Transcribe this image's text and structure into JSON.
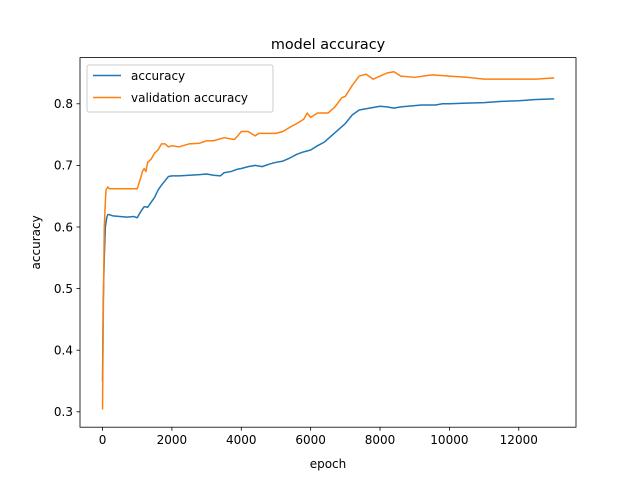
{
  "chart_data": {
    "type": "line",
    "title": "model accuracy",
    "xlabel": "epoch",
    "ylabel": "accuracy",
    "xlim": [
      -650,
      13650
    ],
    "ylim": [
      0.275,
      0.875
    ],
    "xticks": [
      0,
      2000,
      4000,
      6000,
      8000,
      10000,
      12000
    ],
    "yticks": [
      0.3,
      0.4,
      0.5,
      0.6,
      0.7,
      0.8
    ],
    "xtick_labels": [
      "0",
      "2000",
      "4000",
      "6000",
      "8000",
      "10000",
      "12000"
    ],
    "ytick_labels": [
      "0.3",
      "0.4",
      "0.5",
      "0.6",
      "0.7",
      "0.8"
    ],
    "grid": false,
    "legend_position": "upper-left",
    "series": [
      {
        "name": "accuracy",
        "color": "#1f77b4",
        "x": [
          0,
          20,
          50,
          80,
          120,
          150,
          200,
          300,
          500,
          700,
          900,
          1000,
          1100,
          1200,
          1300,
          1400,
          1500,
          1600,
          1700,
          1800,
          1900,
          2000,
          2200,
          2500,
          2800,
          3000,
          3200,
          3400,
          3500,
          3700,
          3900,
          4000,
          4200,
          4400,
          4600,
          4800,
          5000,
          5200,
          5400,
          5600,
          5800,
          6000,
          6200,
          6400,
          6600,
          6800,
          7000,
          7200,
          7400,
          7600,
          7800,
          8000,
          8200,
          8400,
          8600,
          8800,
          9000,
          9200,
          9400,
          9600,
          9800,
          10000,
          10500,
          11000,
          11500,
          12000,
          12500,
          13000
        ],
        "values": [
          0.35,
          0.48,
          0.55,
          0.6,
          0.615,
          0.62,
          0.62,
          0.618,
          0.617,
          0.616,
          0.617,
          0.615,
          0.625,
          0.633,
          0.632,
          0.64,
          0.648,
          0.66,
          0.668,
          0.675,
          0.682,
          0.683,
          0.683,
          0.684,
          0.685,
          0.686,
          0.684,
          0.683,
          0.688,
          0.69,
          0.694,
          0.695,
          0.698,
          0.7,
          0.698,
          0.702,
          0.705,
          0.707,
          0.712,
          0.718,
          0.722,
          0.725,
          0.732,
          0.738,
          0.748,
          0.758,
          0.768,
          0.782,
          0.79,
          0.792,
          0.794,
          0.796,
          0.795,
          0.793,
          0.795,
          0.796,
          0.797,
          0.798,
          0.798,
          0.798,
          0.8,
          0.8,
          0.801,
          0.802,
          0.804,
          0.805,
          0.807,
          0.808
        ]
      },
      {
        "name": "validation accuracy",
        "color": "#ff7f0e",
        "x": [
          0,
          20,
          50,
          80,
          100,
          150,
          200,
          500,
          900,
          1000,
          1100,
          1150,
          1200,
          1250,
          1300,
          1400,
          1500,
          1600,
          1650,
          1700,
          1800,
          1900,
          2000,
          2200,
          2500,
          2800,
          3000,
          3200,
          3500,
          3800,
          3900,
          4000,
          4200,
          4400,
          4500,
          4800,
          5000,
          5200,
          5400,
          5600,
          5800,
          5900,
          6000,
          6200,
          6500,
          6700,
          6900,
          7000,
          7200,
          7400,
          7600,
          7800,
          8000,
          8200,
          8400,
          8600,
          9000,
          9500,
          10000,
          10500,
          11000,
          11500,
          12000,
          12500,
          13000
        ],
        "values": [
          0.305,
          0.45,
          0.6,
          0.64,
          0.66,
          0.665,
          0.662,
          0.662,
          0.662,
          0.662,
          0.68,
          0.69,
          0.695,
          0.69,
          0.705,
          0.71,
          0.72,
          0.725,
          0.73,
          0.735,
          0.735,
          0.73,
          0.732,
          0.73,
          0.735,
          0.736,
          0.74,
          0.74,
          0.745,
          0.742,
          0.748,
          0.755,
          0.755,
          0.748,
          0.752,
          0.752,
          0.752,
          0.755,
          0.762,
          0.768,
          0.775,
          0.785,
          0.778,
          0.785,
          0.785,
          0.795,
          0.81,
          0.812,
          0.83,
          0.845,
          0.848,
          0.84,
          0.845,
          0.85,
          0.852,
          0.845,
          0.843,
          0.847,
          0.845,
          0.843,
          0.84,
          0.84,
          0.84,
          0.84,
          0.842
        ]
      }
    ]
  }
}
